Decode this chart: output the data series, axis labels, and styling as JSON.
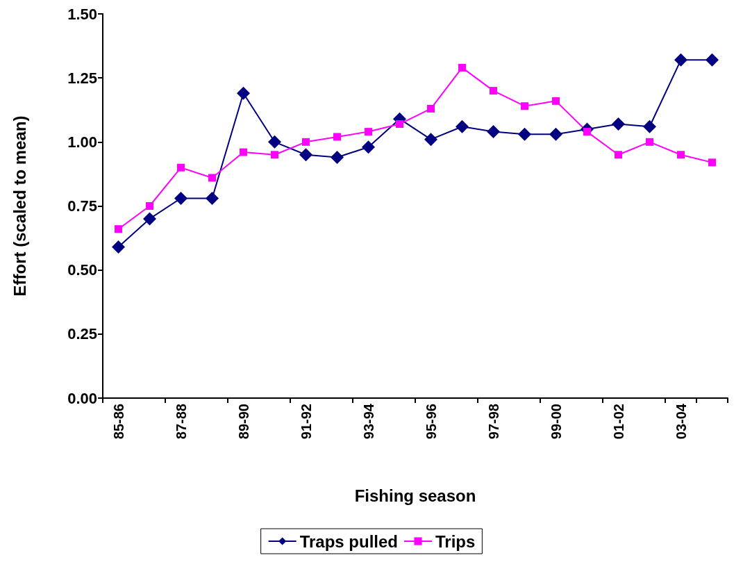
{
  "chart_data": {
    "type": "line",
    "xlabel": "Fishing season",
    "ylabel": "Effort (scaled to mean)",
    "categories": [
      "85-86",
      null,
      "87-88",
      null,
      "89-90",
      null,
      "91-92",
      null,
      "93-94",
      null,
      "95-96",
      null,
      "97-98",
      null,
      "99-00",
      null,
      "01-02",
      null,
      "03-04",
      null
    ],
    "series": [
      {
        "name": "Traps pulled",
        "color": "#000080",
        "marker": "diamond",
        "values": [
          0.59,
          0.7,
          0.78,
          0.78,
          1.19,
          1.0,
          0.95,
          0.94,
          0.98,
          1.09,
          1.01,
          1.06,
          1.04,
          1.03,
          1.03,
          1.05,
          1.07,
          1.06,
          1.32,
          1.32
        ]
      },
      {
        "name": "Trips",
        "color": "#ff00ff",
        "marker": "square",
        "values": [
          0.66,
          0.75,
          0.9,
          0.86,
          0.96,
          0.95,
          1.0,
          1.02,
          1.04,
          1.07,
          1.13,
          1.29,
          1.2,
          1.14,
          1.16,
          1.04,
          0.95,
          1.0,
          0.95,
          0.92
        ]
      }
    ],
    "ylim": [
      0,
      1.5
    ],
    "yticks": [
      {
        "value": 0,
        "label": "0.00"
      },
      {
        "value": 0.25,
        "label": "0.25"
      },
      {
        "value": 0.5,
        "label": "0.50"
      },
      {
        "value": 0.75,
        "label": "0.75"
      },
      {
        "value": 1,
        "label": "1.00"
      },
      {
        "value": 1.25,
        "label": "1.25"
      },
      {
        "value": 1.5,
        "label": "1.50"
      }
    ],
    "grid": false,
    "legend": "bottom",
    "line_style": "solid"
  }
}
